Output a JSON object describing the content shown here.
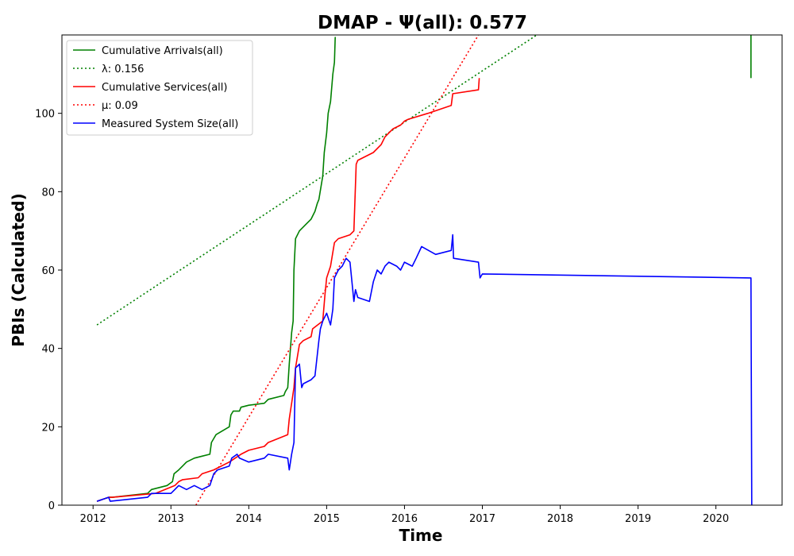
{
  "chart_data": {
    "type": "line",
    "title": "DMAP -  Ψ(all): 0.577",
    "xlabel": "Time",
    "ylabel": "PBIs (Calculated)",
    "xlim": [
      2011.6,
      2020.85
    ],
    "ylim": [
      0,
      120
    ],
    "xticks": [
      2012,
      2013,
      2014,
      2015,
      2016,
      2017,
      2018,
      2019,
      2020
    ],
    "yticks": [
      0,
      20,
      40,
      60,
      80,
      100
    ],
    "grid": false,
    "legend_position": "top-left",
    "series": [
      {
        "name": "Cumulative Arrivals(all)",
        "color": "#008000",
        "style": "solid",
        "x": [
          2012.05,
          2012.2,
          2012.25,
          2012.7,
          2012.75,
          2012.95,
          2013.02,
          2013.04,
          2013.1,
          2013.15,
          2013.2,
          2013.3,
          2013.4,
          2013.5,
          2013.52,
          2013.55,
          2013.58,
          2013.75,
          2013.77,
          2013.8,
          2013.88,
          2013.9,
          2014.0,
          2014.2,
          2014.25,
          2014.45,
          2014.47,
          2014.5,
          2014.52,
          2014.55,
          2014.57,
          2014.58,
          2014.6,
          2014.65,
          2014.75,
          2014.8,
          2014.85,
          2014.88,
          2014.9,
          2014.95,
          2014.97,
          2015.0,
          2015.02,
          2015.05,
          2015.08,
          2015.1,
          2015.11
        ],
        "y": [
          1,
          2,
          2,
          3,
          4,
          5,
          6,
          8,
          9,
          10,
          11,
          12,
          12.5,
          13,
          16,
          17,
          18,
          20,
          23,
          24,
          24,
          25,
          25.5,
          26,
          27,
          28,
          29,
          30,
          36,
          44,
          47,
          60,
          68,
          70,
          72,
          73,
          75,
          77,
          78,
          84,
          90,
          95,
          100,
          103,
          110,
          113,
          119.5
        ]
      },
      {
        "name": "λ: 0.156",
        "color": "#008000",
        "style": "dotted",
        "x": [
          2012.05,
          2017.7
        ],
        "y": [
          46,
          120
        ]
      },
      {
        "name": "Cumulative Services(all)",
        "color": "#ff0000",
        "style": "solid",
        "x": [
          2012.05,
          2012.2,
          2012.25,
          2012.8,
          2013.05,
          2013.1,
          2013.15,
          2013.35,
          2013.4,
          2013.55,
          2013.6,
          2013.75,
          2013.9,
          2014.0,
          2014.2,
          2014.25,
          2014.5,
          2014.52,
          2014.55,
          2014.58,
          2014.6,
          2014.65,
          2014.7,
          2014.8,
          2014.82,
          2014.95,
          2014.98,
          2015.0,
          2015.05,
          2015.1,
          2015.15,
          2015.3,
          2015.35,
          2015.38,
          2015.4,
          2015.6,
          2015.7,
          2015.75,
          2015.8,
          2015.85,
          2015.95,
          2016.0,
          2016.05,
          2016.3,
          2016.6,
          2016.62,
          2016.95,
          2016.96
        ],
        "y": [
          1,
          2,
          2,
          3,
          5,
          6,
          6.5,
          7,
          8,
          9,
          9.5,
          11,
          13,
          14,
          15,
          16,
          18,
          22,
          26,
          30,
          35,
          41,
          42,
          43,
          45,
          47,
          54,
          58,
          61,
          67,
          68,
          69,
          70,
          87,
          88,
          90,
          92,
          94,
          95,
          96,
          97,
          98,
          98.5,
          100,
          102,
          105,
          106,
          109
        ]
      },
      {
        "name": "μ: 0.09",
        "color": "#ff0000",
        "style": "dotted",
        "x": [
          2013.32,
          2016.95
        ],
        "y": [
          0,
          120
        ]
      },
      {
        "name": "Measured System Size(all)",
        "color": "#0000ff",
        "style": "solid",
        "x": [
          2012.05,
          2012.2,
          2012.22,
          2012.7,
          2012.75,
          2013.0,
          2013.05,
          2013.1,
          2013.2,
          2013.3,
          2013.4,
          2013.5,
          2013.55,
          2013.6,
          2013.75,
          2013.78,
          2013.85,
          2013.88,
          2014.0,
          2014.2,
          2014.25,
          2014.5,
          2014.52,
          2014.55,
          2014.58,
          2014.6,
          2014.65,
          2014.68,
          2014.7,
          2014.8,
          2014.85,
          2014.9,
          2014.92,
          2014.95,
          2015.0,
          2015.05,
          2015.08,
          2015.1,
          2015.15,
          2015.2,
          2015.25,
          2015.3,
          2015.35,
          2015.37,
          2015.4,
          2015.55,
          2015.6,
          2015.65,
          2015.7,
          2015.75,
          2015.8,
          2015.9,
          2015.95,
          2016.0,
          2016.1,
          2016.15,
          2016.22,
          2016.4,
          2016.6,
          2016.62,
          2016.63,
          2016.95,
          2016.97,
          2017.0,
          2020.45,
          2020.46
        ],
        "y": [
          1,
          2,
          1,
          2,
          3,
          3,
          4,
          5,
          4,
          5,
          4,
          5,
          8,
          9,
          10,
          12,
          13,
          12,
          11,
          12,
          13,
          12,
          9,
          13,
          16,
          35,
          36,
          30,
          31,
          32,
          33,
          42,
          45,
          47,
          49,
          46,
          50,
          58,
          60,
          61,
          63,
          62,
          52,
          55,
          53,
          52,
          57,
          60,
          59,
          61,
          62,
          61,
          60,
          62,
          61,
          63,
          66,
          64,
          65,
          69,
          63,
          62,
          58,
          59,
          58,
          0
        ]
      },
      {
        "name": "",
        "color": "#008000",
        "style": "solid",
        "x": [
          2020.45,
          2020.45
        ],
        "y": [
          120,
          109
        ]
      }
    ]
  }
}
